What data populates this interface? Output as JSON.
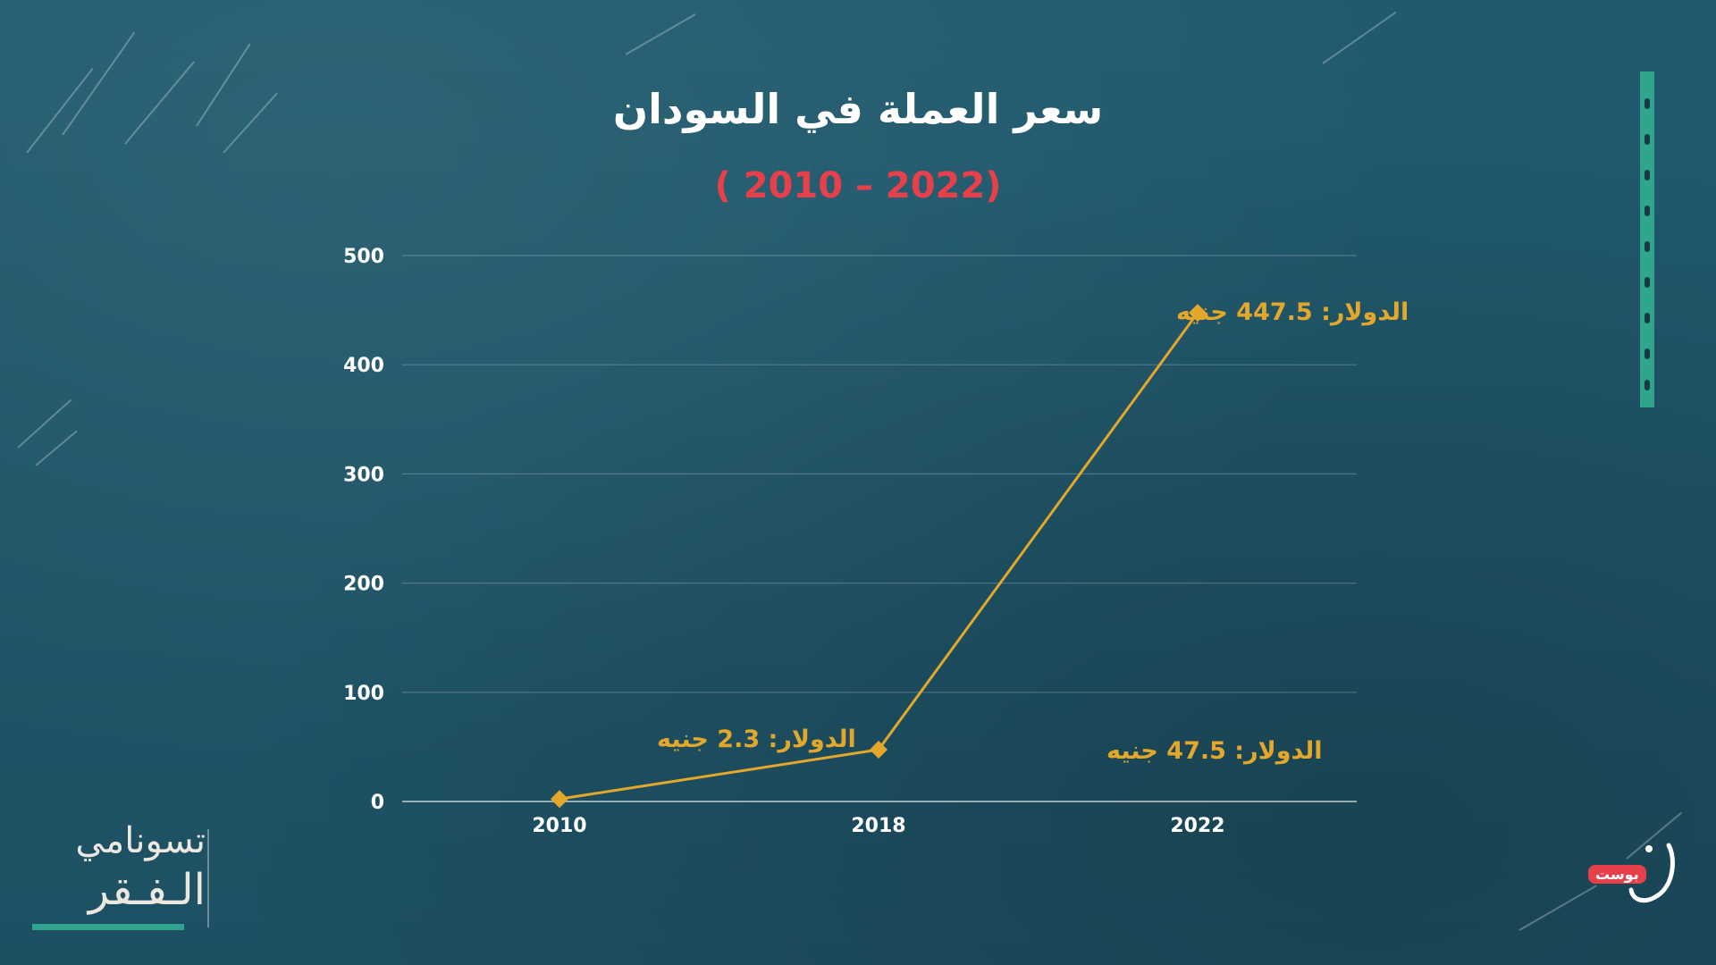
{
  "title": "سعر العملة في السودان",
  "subtitle": "( 2010 – 2022)",
  "colors": {
    "background": "#1f5468",
    "line": "#e3a82b",
    "title": "#ffffff",
    "subtitle": "#e8404a",
    "accent": "#2fa58e"
  },
  "chart_data": {
    "type": "line",
    "title": "سعر العملة في السودان",
    "subtitle": "( 2010 – 2022)",
    "xlabel": "",
    "ylabel": "",
    "x": [
      "2010",
      "2018",
      "2022"
    ],
    "yticks": [
      "0",
      "100",
      "200",
      "300",
      "400",
      "500"
    ],
    "ylim": [
      0,
      500
    ],
    "grid": true,
    "series": [
      {
        "values": [
          2.3,
          47.5,
          447.5
        ],
        "labels": [
          "الدولار: 2.3 جنيه",
          "الدولار: 47.5 جنيه",
          "الدولار: 447.5 جنيه"
        ],
        "marker": "diamond",
        "color": "#e3a82b"
      }
    ]
  },
  "logo_left": {
    "line1": "تسونامي",
    "line2": "الـفـقر"
  },
  "logo_right": {
    "badge": "بوست"
  }
}
